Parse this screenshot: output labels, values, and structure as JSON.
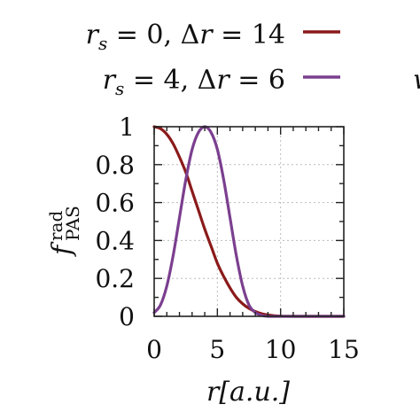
{
  "chart_data": {
    "type": "line",
    "xlabel": "r[a.u.]",
    "ylabel": "f_PAS^rad",
    "ylabel_main": "f",
    "ylabel_sup": "rad",
    "ylabel_sub": "PAS",
    "xlim": [
      0,
      15
    ],
    "ylim": [
      0,
      1
    ],
    "xticks": [
      0,
      5,
      10,
      15
    ],
    "yticks": [
      0,
      0.2,
      0.4,
      0.6,
      0.8,
      1
    ],
    "xtick_labels": [
      "0",
      "5",
      "10",
      "15"
    ],
    "ytick_labels": [
      "0",
      "0.2",
      "0.4",
      "0.6",
      "0.8",
      "1"
    ],
    "grid": true,
    "legend_position": "top",
    "series": [
      {
        "name": "r_s = 0, Δr = 14",
        "legend_label": "r_s = 0, Δr = 14",
        "color": "#8b1a1a",
        "x": [
          0,
          0.5,
          1,
          1.5,
          2,
          2.5,
          3,
          3.5,
          4,
          4.5,
          5,
          5.5,
          6,
          6.5,
          7,
          7.5,
          8,
          8.5,
          9,
          9.5,
          10,
          11,
          12,
          13,
          14,
          15
        ],
        "y": [
          1.0,
          0.99,
          0.96,
          0.91,
          0.84,
          0.76,
          0.66,
          0.56,
          0.46,
          0.37,
          0.28,
          0.21,
          0.15,
          0.1,
          0.066,
          0.042,
          0.025,
          0.014,
          0.007,
          0.003,
          0.001,
          0.0,
          0.0,
          0.0,
          0.0,
          0.0
        ]
      },
      {
        "name": "r_s = 4, Δr = 6",
        "legend_label": "r_s = 4, Δr = 6",
        "color": "#7b3f8f",
        "x": [
          0,
          0.5,
          1,
          1.5,
          2,
          2.5,
          3,
          3.5,
          4,
          4.5,
          5,
          5.5,
          6,
          6.5,
          7,
          7.5,
          8,
          8.5,
          9,
          9.5,
          10,
          11,
          12,
          13,
          14,
          15
        ],
        "y": [
          0.02,
          0.06,
          0.16,
          0.32,
          0.52,
          0.72,
          0.88,
          0.97,
          1.0,
          0.97,
          0.88,
          0.72,
          0.52,
          0.32,
          0.16,
          0.06,
          0.02,
          0.005,
          0.0,
          0.0,
          0.0,
          0.0,
          0.0,
          0.0,
          0.0,
          0.0
        ]
      }
    ]
  },
  "cutoff_glyph": "w"
}
